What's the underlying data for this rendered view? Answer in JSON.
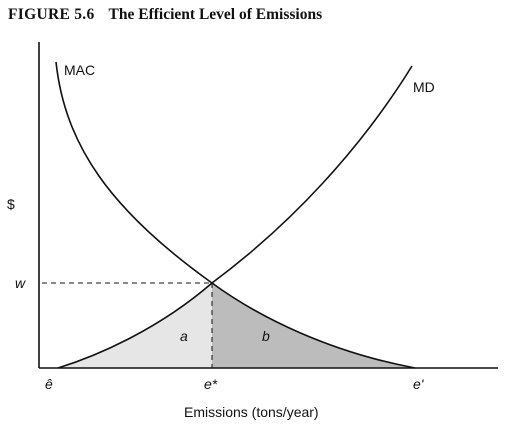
{
  "figure": {
    "number": "FIGURE 5.6",
    "caption": "The Efficient Level of Emissions"
  },
  "axes": {
    "y_label": "$",
    "x_label": "Emissions (tons/year)",
    "y_tick": "w",
    "x_ticks": [
      "ê",
      "e*",
      "e'"
    ]
  },
  "curves": {
    "mac_label": "MAC",
    "md_label": "MD"
  },
  "areas": {
    "left_label": "a",
    "right_label": "b",
    "left_fill": "#e6e6e6",
    "right_fill": "#bcbcbc"
  },
  "colors": {
    "line": "#111111"
  }
}
